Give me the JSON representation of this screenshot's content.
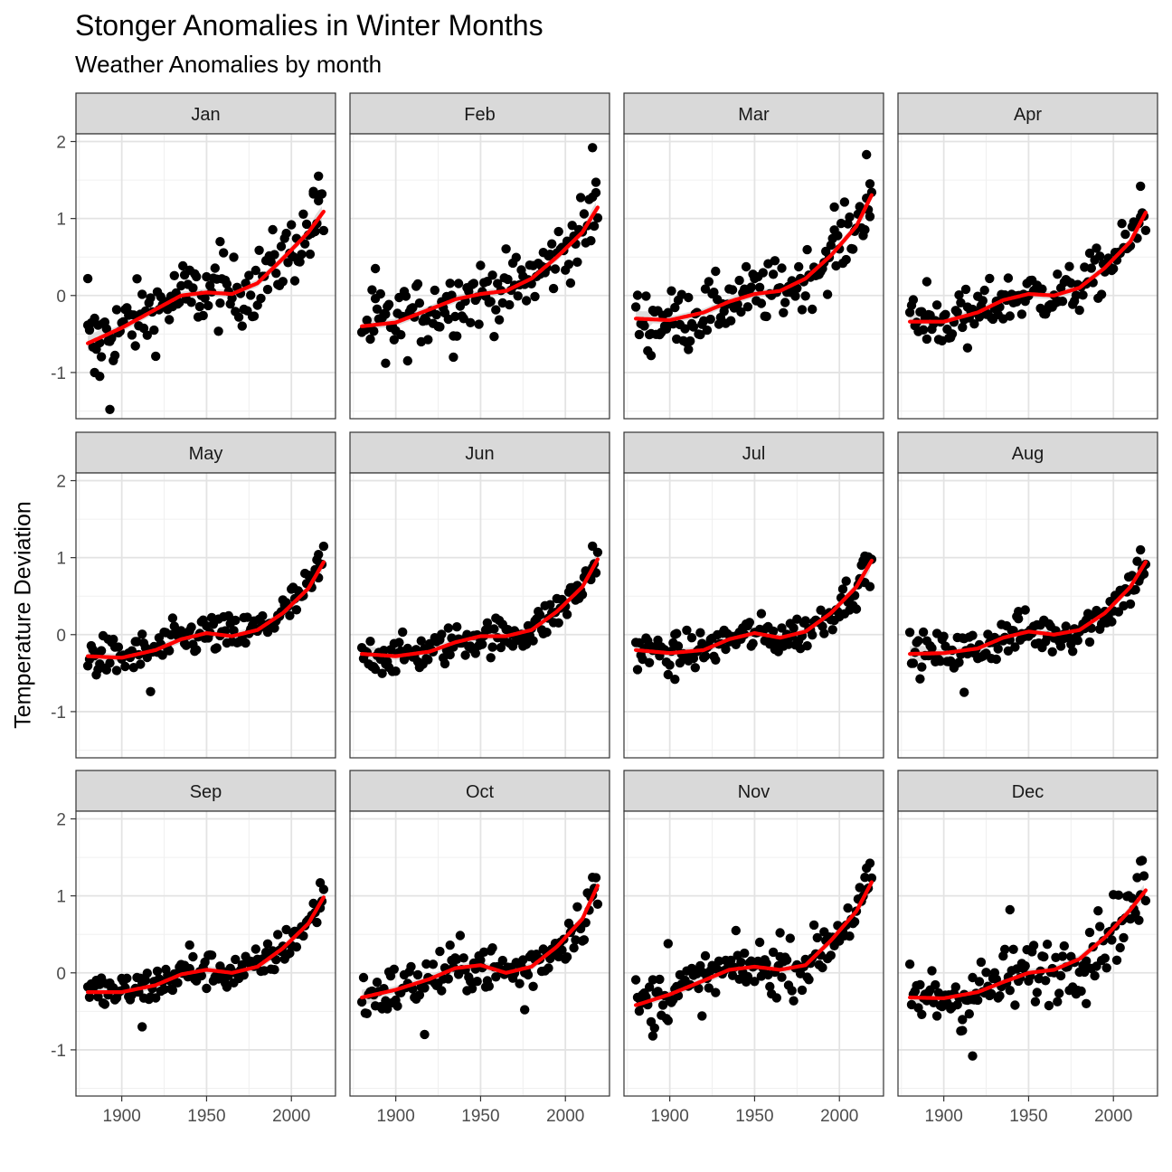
{
  "chart_data": {
    "type": "scatter",
    "title": "Stonger Anomalies in Winter Months",
    "subtitle": "Weather Anomalies by month",
    "xlabel": "",
    "ylabel": "Temperature Deviation",
    "xlim": [
      1873,
      2026
    ],
    "ylim": [
      -1.6,
      2.1
    ],
    "x_ticks": [
      1900,
      1950,
      2000
    ],
    "x_tick_labels": [
      "1900",
      "1950",
      "2000"
    ],
    "y_ticks": [
      -1,
      0,
      1,
      2
    ],
    "y_tick_labels": [
      "-1",
      "0",
      "1",
      "2"
    ],
    "grid": true,
    "facets": [
      "Jan",
      "Feb",
      "Mar",
      "Apr",
      "May",
      "Jun",
      "Jul",
      "Aug",
      "Sep",
      "Oct",
      "Nov",
      "Dec"
    ],
    "series_colors": {
      "points": "#000000",
      "smooth": "#ff0000",
      "ribbon": "#bdbdbd"
    },
    "panels": [
      {
        "month": "Jan",
        "noise": 0.23,
        "smooth_x": [
          1880,
          1900,
          1920,
          1935,
          1950,
          1965,
          1980,
          1995,
          2010,
          2020
        ],
        "smooth_y": [
          -0.62,
          -0.42,
          -0.18,
          0.0,
          0.04,
          0.02,
          0.16,
          0.48,
          0.82,
          1.12
        ],
        "extra_points": [
          [
            1880,
            0.22
          ],
          [
            1884,
            -1.0
          ],
          [
            1887,
            -1.05
          ],
          [
            1893,
            -1.48
          ],
          [
            2016,
            1.55
          ],
          [
            2013,
            1.32
          ],
          [
            1958,
            0.7
          ]
        ]
      },
      {
        "month": "Feb",
        "noise": 0.22,
        "smooth_x": [
          1880,
          1900,
          1920,
          1935,
          1950,
          1965,
          1980,
          1995,
          2010,
          2020
        ],
        "smooth_y": [
          -0.4,
          -0.35,
          -0.18,
          -0.05,
          0.02,
          0.06,
          0.22,
          0.5,
          0.82,
          1.18
        ],
        "extra_points": [
          [
            2016,
            1.92
          ],
          [
            2018,
            1.47
          ],
          [
            1888,
            0.35
          ],
          [
            1934,
            -0.8
          ],
          [
            1894,
            -0.88
          ]
        ]
      },
      {
        "month": "Mar",
        "noise": 0.19,
        "smooth_x": [
          1880,
          1900,
          1920,
          1935,
          1950,
          1965,
          1980,
          1995,
          2010,
          2020
        ],
        "smooth_y": [
          -0.3,
          -0.32,
          -0.22,
          -0.08,
          0.02,
          0.06,
          0.22,
          0.52,
          0.9,
          1.35
        ],
        "extra_points": [
          [
            2016,
            1.83
          ],
          [
            2018,
            1.45
          ],
          [
            1889,
            -0.78
          ],
          [
            1911,
            -0.7
          ],
          [
            1997,
            1.15
          ]
        ]
      },
      {
        "month": "Apr",
        "noise": 0.16,
        "smooth_x": [
          1880,
          1900,
          1920,
          1935,
          1950,
          1965,
          1980,
          1995,
          2010,
          2020
        ],
        "smooth_y": [
          -0.34,
          -0.34,
          -0.22,
          -0.06,
          0.02,
          0.0,
          0.1,
          0.36,
          0.7,
          1.12
        ],
        "extra_points": [
          [
            2016,
            1.42
          ],
          [
            1890,
            0.18
          ],
          [
            1914,
            -0.68
          ]
        ]
      },
      {
        "month": "May",
        "noise": 0.13,
        "smooth_x": [
          1880,
          1900,
          1920,
          1935,
          1950,
          1965,
          1980,
          1995,
          2010,
          2020
        ],
        "smooth_y": [
          -0.28,
          -0.3,
          -0.2,
          -0.06,
          0.02,
          -0.02,
          0.06,
          0.28,
          0.6,
          0.98
        ],
        "extra_points": [
          [
            1917,
            -0.74
          ],
          [
            2016,
            1.04
          ]
        ]
      },
      {
        "month": "Jun",
        "noise": 0.12,
        "smooth_x": [
          1880,
          1900,
          1920,
          1935,
          1950,
          1965,
          1980,
          1995,
          2010,
          2020
        ],
        "smooth_y": [
          -0.25,
          -0.28,
          -0.22,
          -0.1,
          -0.02,
          -0.02,
          0.06,
          0.3,
          0.62,
          1.02
        ],
        "extra_points": [
          [
            2016,
            1.15
          ]
        ]
      },
      {
        "month": "Jul",
        "noise": 0.12,
        "smooth_x": [
          1880,
          1900,
          1920,
          1935,
          1950,
          1965,
          1980,
          1995,
          2010,
          2020
        ],
        "smooth_y": [
          -0.2,
          -0.24,
          -0.2,
          -0.06,
          0.02,
          -0.04,
          0.04,
          0.28,
          0.62,
          1.0
        ],
        "extra_points": [
          [
            1903,
            -0.58
          ],
          [
            2015,
            1.02
          ]
        ]
      },
      {
        "month": "Aug",
        "noise": 0.13,
        "smooth_x": [
          1880,
          1900,
          1920,
          1935,
          1950,
          1965,
          1980,
          1995,
          2010,
          2020
        ],
        "smooth_y": [
          -0.25,
          -0.24,
          -0.18,
          -0.04,
          0.04,
          0.0,
          0.06,
          0.28,
          0.62,
          0.98
        ],
        "extra_points": [
          [
            1912,
            -0.75
          ],
          [
            2016,
            1.1
          ],
          [
            1944,
            0.3
          ]
        ]
      },
      {
        "month": "Sep",
        "noise": 0.12,
        "smooth_x": [
          1880,
          1900,
          1920,
          1935,
          1950,
          1965,
          1980,
          1995,
          2010,
          2020
        ],
        "smooth_y": [
          -0.25,
          -0.25,
          -0.16,
          -0.02,
          0.04,
          0.0,
          0.08,
          0.32,
          0.64,
          1.02
        ],
        "extra_points": [
          [
            1912,
            -0.7
          ],
          [
            2017,
            1.17
          ],
          [
            1940,
            0.36
          ]
        ]
      },
      {
        "month": "Oct",
        "noise": 0.16,
        "smooth_x": [
          1880,
          1900,
          1920,
          1935,
          1950,
          1965,
          1980,
          1995,
          2010,
          2020
        ],
        "smooth_y": [
          -0.32,
          -0.22,
          -0.08,
          0.06,
          0.1,
          0.0,
          0.08,
          0.34,
          0.7,
          1.18
        ],
        "extra_points": [
          [
            1917,
            -0.8
          ],
          [
            2016,
            1.24
          ],
          [
            1976,
            -0.48
          ]
        ]
      },
      {
        "month": "Nov",
        "noise": 0.17,
        "smooth_x": [
          1880,
          1900,
          1920,
          1935,
          1950,
          1965,
          1980,
          1995,
          2010,
          2020
        ],
        "smooth_y": [
          -0.42,
          -0.28,
          -0.1,
          0.04,
          0.08,
          0.04,
          0.1,
          0.42,
          0.8,
          1.22
        ],
        "extra_points": [
          [
            1890,
            -0.82
          ],
          [
            1899,
            0.38
          ],
          [
            2016,
            1.36
          ],
          [
            1965,
            0.52
          ]
        ]
      },
      {
        "month": "Dec",
        "noise": 0.21,
        "smooth_x": [
          1880,
          1900,
          1920,
          1935,
          1950,
          1965,
          1980,
          1995,
          2010,
          2020
        ],
        "smooth_y": [
          -0.32,
          -0.33,
          -0.25,
          -0.12,
          0.0,
          0.04,
          0.18,
          0.46,
          0.82,
          1.1
        ],
        "extra_points": [
          [
            1917,
            -1.08
          ],
          [
            1939,
            0.82
          ],
          [
            2016,
            1.45
          ],
          [
            1984,
            -0.4
          ],
          [
            1911,
            -0.75
          ]
        ]
      }
    ]
  }
}
